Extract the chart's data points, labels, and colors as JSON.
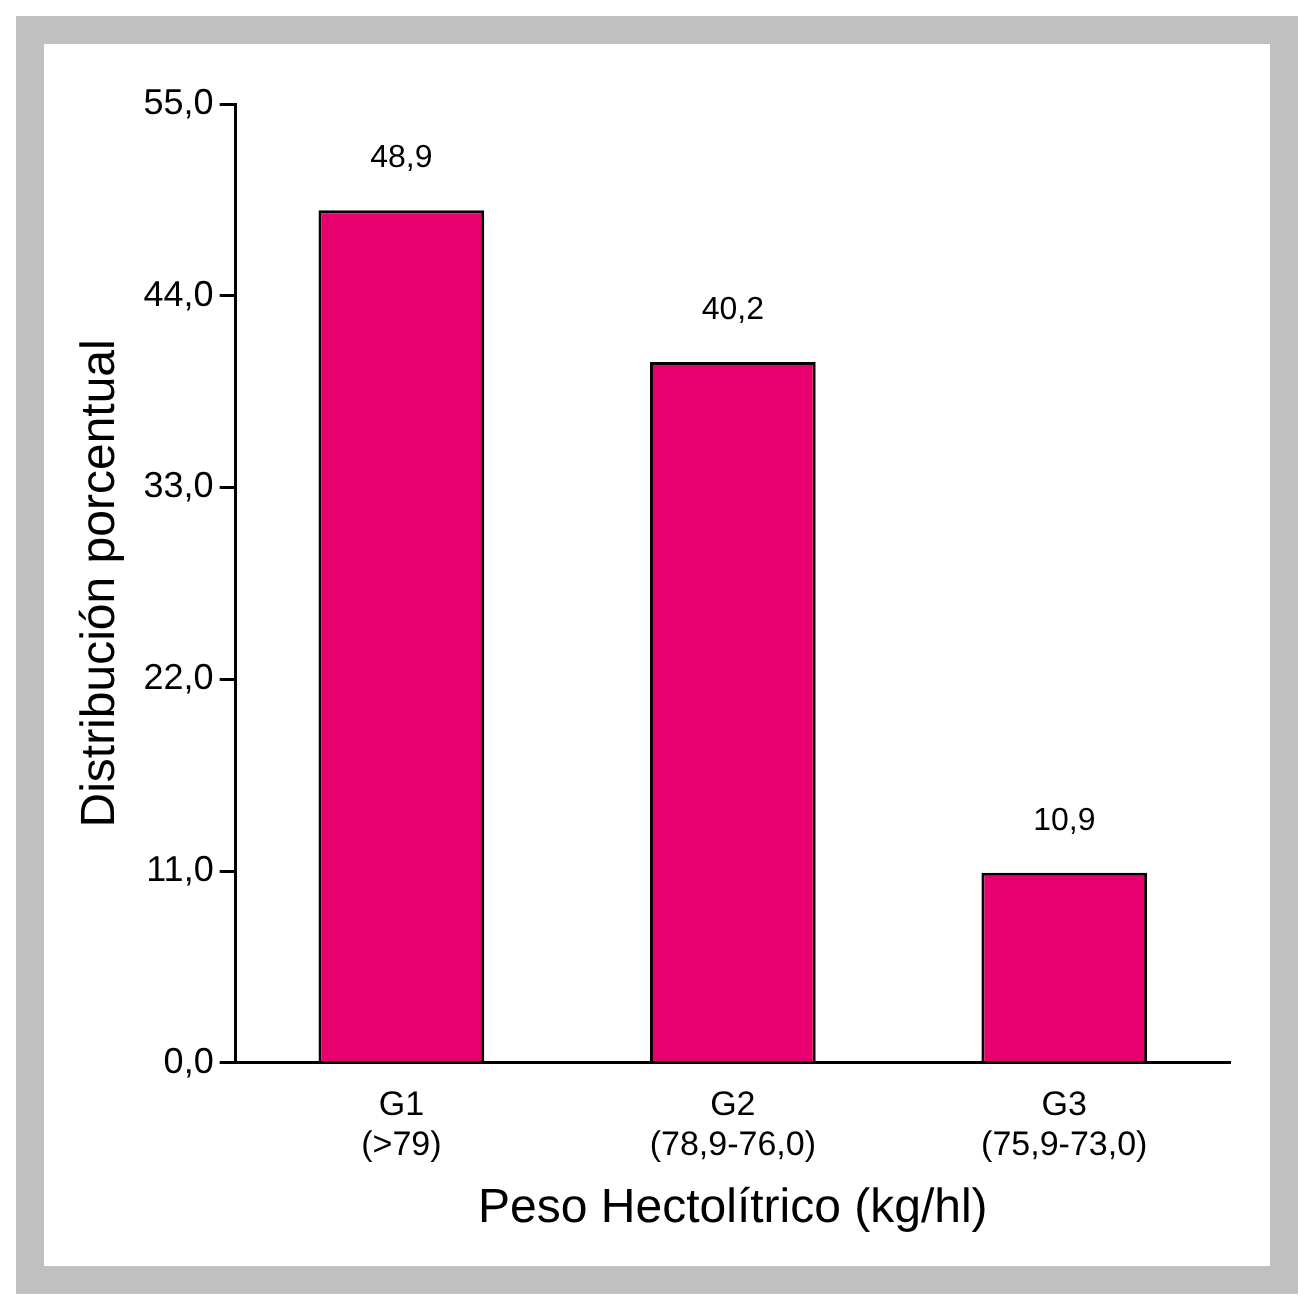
{
  "chart_data": {
    "type": "bar",
    "xlabel": "Peso Hectolítrico (kg/hl)",
    "ylabel": "Distribución porcentual",
    "categories": [
      "G1\n(>79)",
      "G2\n(78,9-76,0)",
      "G3\n(75,9-73,0)"
    ],
    "values": [
      48.9,
      40.2,
      10.9
    ],
    "color": "#e8006e",
    "value_labels": [
      "48,9",
      "40,2",
      "10,9"
    ],
    "ylim": [
      0,
      55
    ],
    "yticks": [
      {
        "value": 0,
        "label": "0,0"
      },
      {
        "value": 11,
        "label": "11,0"
      },
      {
        "value": 22,
        "label": "22,0"
      },
      {
        "value": 33,
        "label": "33,0"
      },
      {
        "value": 44,
        "label": "44,0"
      },
      {
        "value": 55,
        "label": "55,0"
      }
    ]
  }
}
